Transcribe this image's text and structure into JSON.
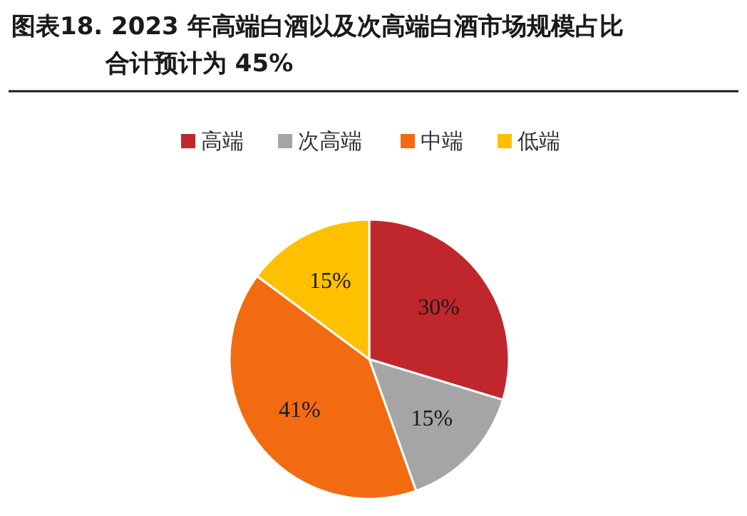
{
  "chart_data": {
    "type": "pie",
    "title": "图表18. 2023 年高端白酒以及次高端白酒市场规模占比合计预计为 45%",
    "categories": [
      "高端",
      "次高端",
      "中端",
      "低端"
    ],
    "values": [
      30,
      15,
      41,
      15
    ],
    "colors": [
      "#c0272d",
      "#a5a5a5",
      "#f26b10",
      "#ffc000"
    ],
    "value_labels": [
      "30%",
      "15%",
      "41%",
      "15%"
    ],
    "legend": "top"
  }
}
